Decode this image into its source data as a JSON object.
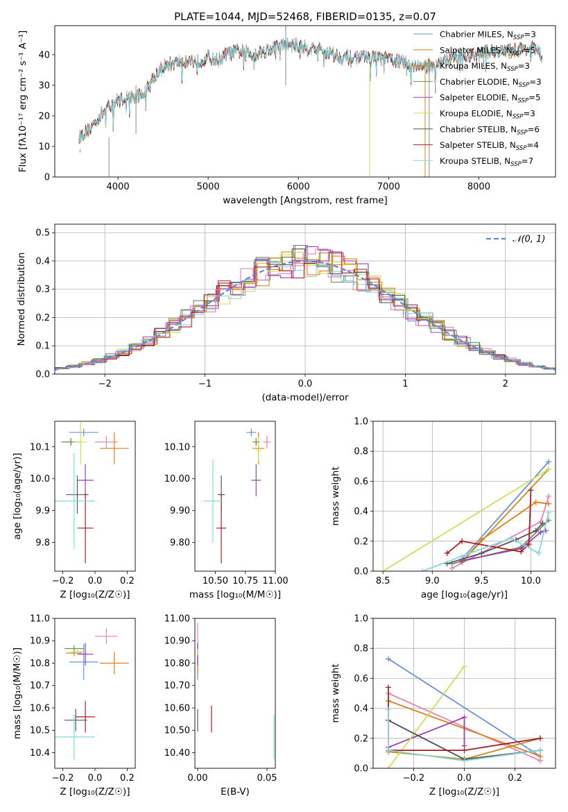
{
  "figure": {
    "title": "PLATE=1044, MJD=52468, FIBERID=0135, z=0.07"
  },
  "models": [
    {
      "name": "Chabrier MILES, N_SSP=3",
      "label_main": "Chabrier MILES, N",
      "label_sub": "SSP",
      "label_end": "=3",
      "color": "#6a8fd8"
    },
    {
      "name": "Salpeter MILES, N_SSP=5",
      "label_main": "Salpeter MILES, N",
      "label_sub": "SSP",
      "label_end": "=5",
      "color": "#e07b1a"
    },
    {
      "name": "Kroupa MILES, N_SSP=3",
      "label_main": "Kroupa MILES, N",
      "label_sub": "SSP",
      "label_end": "=3",
      "color": "#c88a1e"
    },
    {
      "name": "Chabrier ELODIE, N_SSP=3",
      "label_main": "Chabrier ELODIE, N",
      "label_sub": "SSP",
      "label_end": "=3",
      "color": "#6b8f5e"
    },
    {
      "name": "Salpeter ELODIE, N_SSP=5",
      "label_main": "Salpeter ELODIE, N",
      "label_sub": "SSP",
      "label_end": "=5",
      "color": "#9a3bb5"
    },
    {
      "name": "Kroupa ELODIE, N_SSP=3",
      "label_main": "Kroupa ELODIE, N",
      "label_sub": "SSP",
      "label_end": "=3",
      "color": "#c9df5a"
    },
    {
      "name": "Chabrier STELIB, N_SSP=6",
      "label_main": "Chabrier STELIB, N",
      "label_sub": "SSP",
      "label_end": "=6",
      "color": "#555555"
    },
    {
      "name": "Salpeter STELIB, N_SSP=4",
      "label_main": "Salpeter STELIB, N",
      "label_sub": "SSP",
      "label_end": "=4",
      "color": "#a81c22"
    },
    {
      "name": "Kroupa STELIB, N_SSP=7",
      "label_main": "Kroupa STELIB, N",
      "label_sub": "SSP",
      "label_end": "=7",
      "color": "#86d6dc"
    }
  ],
  "chart_data": [
    {
      "id": "spectrum",
      "type": "line",
      "xlabel": "wavelength [Angstrom, rest frame]",
      "ylabel": "Flux [fλ10⁻¹⁷ erg cm⁻² s⁻¹ A⁻¹]",
      "xlim": [
        3300,
        8850
      ],
      "ylim": [
        0,
        49.5
      ],
      "xticks": [
        4000,
        5000,
        6000,
        7000,
        8000
      ],
      "yticks": [
        0,
        10,
        20,
        30,
        40
      ],
      "legend": "upper-right",
      "continuum_x": [
        3570,
        3700,
        3800,
        3900,
        4000,
        4100,
        4200,
        4300,
        4400,
        4500,
        4600,
        4700,
        4800,
        4900,
        5000,
        5100,
        5200,
        5300,
        5400,
        5500,
        5600,
        5700,
        5800,
        5900,
        6000,
        6100,
        6200,
        6300,
        6400,
        6500,
        6600,
        6700,
        6800,
        6900,
        7000,
        7100,
        7200,
        7300,
        7400,
        7500,
        7600,
        7700,
        7800,
        7900,
        8000,
        8100,
        8200,
        8300,
        8400,
        8500,
        8600,
        8700
      ],
      "continuum_y": [
        13,
        16,
        20,
        23,
        25,
        26,
        26,
        28,
        33,
        36,
        37,
        38,
        38,
        38,
        39,
        38,
        40,
        41,
        41,
        40,
        41,
        42,
        43,
        43,
        43,
        42,
        42,
        41,
        40,
        39,
        39,
        39,
        39,
        39,
        38.5,
        38,
        37,
        36.5,
        36,
        36.5,
        38,
        39,
        40,
        39.5,
        40,
        41,
        41.5,
        41,
        41.5,
        42,
        42,
        40
      ]
    },
    {
      "id": "residuals",
      "type": "line",
      "xlabel": "(data-model)/error",
      "ylabel": "Normed distribution",
      "xlim": [
        -2.5,
        2.5
      ],
      "ylim": [
        0,
        0.53
      ],
      "xticks": [
        -2,
        -1,
        0,
        1,
        2
      ],
      "yticks": [
        0.0,
        0.1,
        0.2,
        0.3,
        0.4,
        0.5
      ],
      "legend_label": "𝒩(0, 1)",
      "legend": "upper-right",
      "grid": true,
      "gaussian": {
        "mean": 0,
        "sigma": 1
      }
    },
    {
      "id": "age-vs-Z",
      "type": "scatter",
      "xlabel": "Z [log₁₀(Z/Z☉)]",
      "ylabel": "age  [log₁₀(age/yr)]",
      "xlim": [
        -0.25,
        0.25
      ],
      "ylim": [
        9.71,
        10.18
      ],
      "xticks": [
        -0.2,
        0.0,
        0.2
      ],
      "yticks": [
        9.8,
        9.9,
        10.0,
        10.1
      ],
      "points": [
        {
          "x": -0.07,
          "y": 10.145,
          "xerr": 0.09,
          "yerr": 0.012
        },
        {
          "x": 0.12,
          "y": 10.095,
          "xerr": 0.09,
          "yerr": 0.05
        },
        {
          "x": -0.15,
          "y": 10.115,
          "xerr": 0.05,
          "yerr": 0.012
        },
        {
          "x": -0.15,
          "y": 10.115,
          "xerr": 0.06,
          "yerr": 0.012
        },
        {
          "x": -0.06,
          "y": 9.995,
          "xerr": 0.05,
          "yerr": 0.05
        },
        {
          "x": -0.09,
          "y": 10.115,
          "xerr": 0.04,
          "yerr": 0.07
        },
        {
          "x": -0.11,
          "y": 9.95,
          "xerr": 0.07,
          "yerr": 0.06
        },
        {
          "x": -0.06,
          "y": 9.845,
          "xerr": 0.05,
          "yerr": 0.11
        },
        {
          "x": -0.13,
          "y": 9.93,
          "xerr": 0.13,
          "yerr": 0.15
        }
      ],
      "extra_point": {
        "x": 0.07,
        "y": 10.115,
        "xerr": 0.07,
        "yerr": 0.02,
        "color": "#e87fb5"
      }
    },
    {
      "id": "age-vs-mass",
      "type": "scatter",
      "xlabel": "mass [log₁₀(M/M☉)]",
      "ylabel": "",
      "xlim": [
        10.33,
        11.0
      ],
      "ylim": [
        9.71,
        10.18
      ],
      "xticks": [
        10.5,
        10.75,
        11.0
      ],
      "yticks": [
        9.8,
        9.9,
        10.0,
        10.1
      ],
      "points": [
        {
          "x": 10.8,
          "y": 10.145,
          "xerr": 0.04,
          "yerr": 0.012
        },
        {
          "x": 10.86,
          "y": 10.095,
          "xerr": 0.05,
          "yerr": 0.05
        },
        {
          "x": 10.84,
          "y": 10.115,
          "xerr": 0.03,
          "yerr": 0.012
        },
        {
          "x": 10.84,
          "y": 10.115,
          "xerr": 0.03,
          "yerr": 0.012
        },
        {
          "x": 10.84,
          "y": 9.995,
          "xerr": 0.04,
          "yerr": 0.05
        },
        {
          "x": 10.86,
          "y": 10.09,
          "xerr": 0.02,
          "yerr": 0.04
        },
        {
          "x": 10.55,
          "y": 9.95,
          "xerr": 0.03,
          "yerr": 0.06
        },
        {
          "x": 10.55,
          "y": 9.845,
          "xerr": 0.04,
          "yerr": 0.11
        },
        {
          "x": 10.48,
          "y": 9.93,
          "xerr": 0.08,
          "yerr": 0.13
        }
      ],
      "extra_point": {
        "x": 10.93,
        "y": 10.115,
        "xerr": 0.03,
        "yerr": 0.02,
        "color": "#e87fb5"
      }
    },
    {
      "id": "weight-vs-age",
      "type": "line",
      "xlabel": "age  [log₁₀(age/yr)]",
      "ylabel": "mass weight",
      "xlim": [
        8.4,
        10.25
      ],
      "ylim": [
        0,
        1.0
      ],
      "xticks": [
        8.5,
        9.0,
        9.5,
        10.0
      ],
      "yticks": [
        0.0,
        0.2,
        0.4,
        0.6,
        0.8,
        1.0
      ],
      "grid": true,
      "series": [
        {
          "x": [
            9.3,
            10.18
          ],
          "y": [
            0.08,
            0.73
          ]
        },
        {
          "x": [
            9.3,
            9.5,
            10.05,
            10.18
          ],
          "y": [
            0.06,
            0.21,
            0.46,
            0.45
          ]
        },
        {
          "x": [
            9.3,
            10.18
          ],
          "y": [
            0.06,
            0.68
          ]
        },
        {
          "x": [
            9.2,
            9.9,
            10.18
          ],
          "y": [
            0.05,
            0.16,
            0.34
          ]
        },
        {
          "x": [
            9.3,
            9.9,
            10.1,
            10.15
          ],
          "y": [
            0.07,
            0.15,
            0.26,
            0.27
          ]
        },
        {
          "x": [
            8.5,
            10.18
          ],
          "y": [
            0.0,
            0.68
          ]
        },
        {
          "x": [
            9.15,
            9.5,
            9.85,
            10.05,
            10.12
          ],
          "y": [
            0.05,
            0.12,
            0.21,
            0.27,
            0.32
          ]
        },
        {
          "x": [
            9.15,
            9.3,
            9.9,
            9.98,
            10.0
          ],
          "y": [
            0.12,
            0.2,
            0.13,
            0.18,
            0.54
          ]
        },
        {
          "x": [
            8.9,
            9.3,
            9.8,
            10.08,
            10.18
          ],
          "y": [
            0.0,
            0.1,
            0.22,
            0.12,
            0.39
          ]
        }
      ],
      "extra_series": {
        "x": [
          9.2,
          10.1,
          10.18
        ],
        "y": [
          0.02,
          0.33,
          0.5
        ],
        "color": "#e87fb5"
      }
    },
    {
      "id": "mass-vs-Z",
      "type": "scatter",
      "xlabel": "Z [log₁₀(Z/Z☉)]",
      "ylabel": "mass [log₁₀(M/M☉)]",
      "xlim": [
        -0.25,
        0.25
      ],
      "ylim": [
        10.33,
        11.0
      ],
      "xticks": [
        -0.2,
        0.0,
        0.2
      ],
      "yticks": [
        10.4,
        10.5,
        10.6,
        10.7,
        10.8,
        10.9,
        11.0
      ],
      "points": [
        {
          "x": -0.07,
          "y": 10.805,
          "xerr": 0.09,
          "yerr": 0.08
        },
        {
          "x": 0.12,
          "y": 10.8,
          "xerr": 0.09,
          "yerr": 0.05
        },
        {
          "x": -0.13,
          "y": 10.845,
          "xerr": 0.05,
          "yerr": 0.015
        },
        {
          "x": -0.13,
          "y": 10.865,
          "xerr": 0.06,
          "yerr": 0.015
        },
        {
          "x": -0.06,
          "y": 10.84,
          "xerr": 0.05,
          "yerr": 0.05
        },
        {
          "x": -0.11,
          "y": 10.85,
          "xerr": 0.04,
          "yerr": 0.015
        },
        {
          "x": -0.12,
          "y": 10.545,
          "xerr": 0.07,
          "yerr": 0.05
        },
        {
          "x": -0.06,
          "y": 10.56,
          "xerr": 0.06,
          "yerr": 0.07
        },
        {
          "x": -0.13,
          "y": 10.47,
          "xerr": 0.13,
          "yerr": 0.1
        }
      ],
      "extra_point": {
        "x": 0.07,
        "y": 10.92,
        "xerr": 0.07,
        "yerr": 0.035,
        "color": "#e87fb5"
      }
    },
    {
      "id": "mass-vs-ebv",
      "type": "scatter",
      "xlabel": "E(B-V)",
      "ylabel": "",
      "xlim": [
        -0.002,
        0.056
      ],
      "ylim": [
        10.33,
        11.0
      ],
      "xticks": [
        0.0,
        0.05
      ],
      "yticks": [
        10.4,
        10.5,
        10.6,
        10.7,
        10.8,
        10.9,
        11.0
      ],
      "points": [
        {
          "x": 0.0,
          "y": 10.805,
          "xerr": 0.0,
          "yerr": 0.08
        },
        {
          "x": 0.0,
          "y": 10.8,
          "xerr": 0.0,
          "yerr": 0.05
        },
        {
          "x": 0.0,
          "y": 10.845,
          "xerr": 0.0,
          "yerr": 0.015
        },
        {
          "x": 0.0,
          "y": 10.865,
          "xerr": 0.0,
          "yerr": 0.015
        },
        {
          "x": 0.0,
          "y": 10.84,
          "xerr": 0.0,
          "yerr": 0.05
        },
        {
          "x": 0.0,
          "y": 10.85,
          "xerr": 0.0,
          "yerr": 0.015
        },
        {
          "x": 0.0,
          "y": 10.545,
          "xerr": 0.0,
          "yerr": 0.05
        },
        {
          "x": 0.01,
          "y": 10.55,
          "xerr": 0.0,
          "yerr": 0.06
        },
        {
          "x": 0.055,
          "y": 10.47,
          "xerr": 0.0,
          "yerr": 0.1
        }
      ],
      "extra_point": {
        "x": 0.0,
        "y": 10.92,
        "xerr": 0.0,
        "yerr": 0.06,
        "color": "#e87fb5"
      }
    },
    {
      "id": "weight-vs-Z",
      "type": "line",
      "xlabel": "Z [log₁₀(Z/Z☉)]",
      "ylabel": "mass weight",
      "xlim": [
        -0.36,
        0.36
      ],
      "ylim": [
        0,
        1.0
      ],
      "xticks": [
        -0.2,
        0.0,
        0.2
      ],
      "yticks": [
        0.0,
        0.2,
        0.4,
        0.6,
        0.8,
        1.0
      ],
      "grid": true,
      "series": [
        {
          "x": [
            -0.3,
            0.3
          ],
          "y": [
            0.73,
            0.08
          ]
        },
        {
          "x": [
            -0.3,
            0.3
          ],
          "y": [
            0.45,
            0.08
          ]
        },
        {
          "x": [
            -0.3,
            0.0,
            0.3
          ],
          "y": [
            0.11,
            0.06,
            0.2
          ]
        },
        {
          "x": [
            -0.3,
            0.0,
            0.3
          ],
          "y": [
            0.32,
            0.06,
            0.12
          ]
        },
        {
          "x": [
            -0.3,
            0.0,
            0.0
          ],
          "y": [
            0.14,
            0.34,
            0.15
          ]
        },
        {
          "x": [
            -0.3,
            0.0
          ],
          "y": [
            0.0,
            0.68
          ]
        },
        {
          "x": [
            -0.3,
            0.0,
            0.3
          ],
          "y": [
            0.32,
            0.06,
            0.12
          ]
        },
        {
          "x": [
            -0.3,
            -0.3,
            0.0,
            0.3
          ],
          "y": [
            0.54,
            0.12,
            0.12,
            0.2
          ]
        },
        {
          "x": [
            -0.3,
            -0.3,
            0.0,
            0.3
          ],
          "y": [
            0.39,
            0.12,
            0.05,
            0.12
          ]
        }
      ],
      "extra_series": {
        "x": [
          -0.3,
          0.3
        ],
        "y": [
          0.5,
          0.05
        ],
        "color": "#e87fb5"
      }
    }
  ]
}
